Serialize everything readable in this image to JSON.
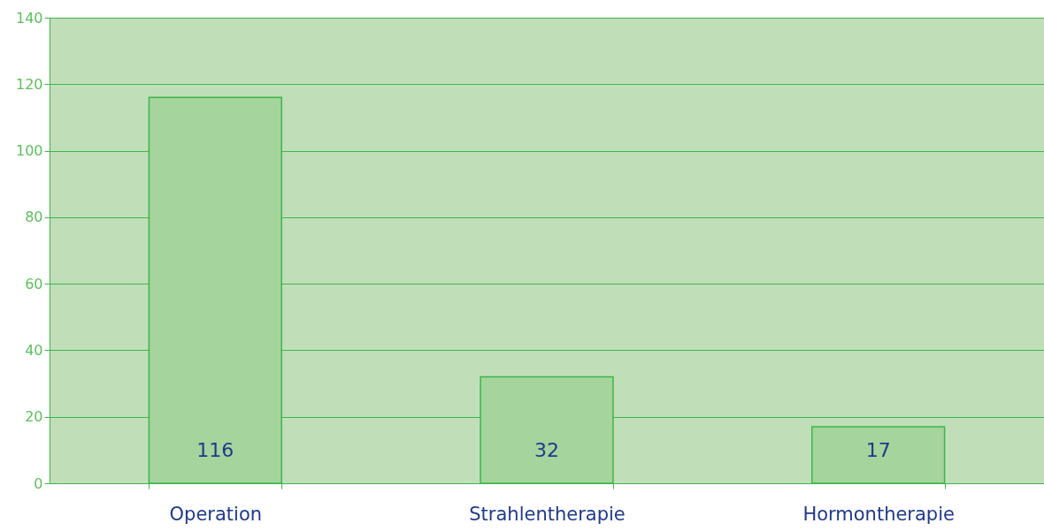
{
  "chart_data": {
    "type": "bar",
    "categories": [
      "Operation",
      "Strahlentherapie",
      "Hormontherapie"
    ],
    "values": [
      116,
      32,
      17
    ],
    "color": "#a5d49d",
    "ylim": [
      0,
      140
    ],
    "yticks": [
      0,
      20,
      40,
      60,
      80,
      100,
      120,
      140
    ],
    "grid": "y",
    "data_labels": true
  }
}
